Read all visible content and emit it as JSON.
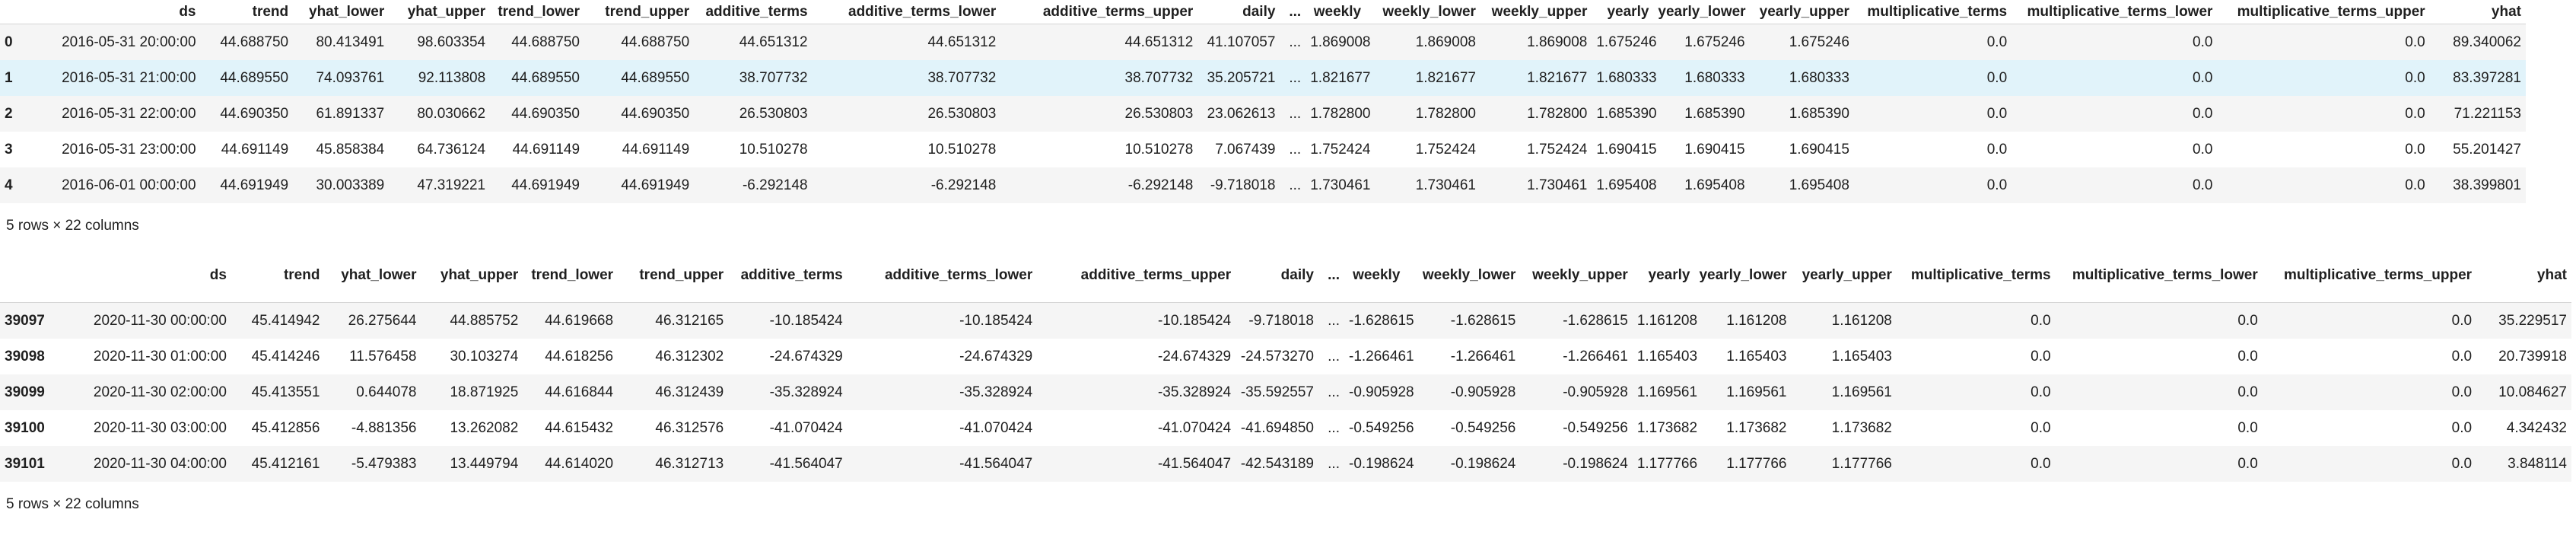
{
  "table1": {
    "columns": [
      "ds",
      "trend",
      "yhat_lower",
      "yhat_upper",
      "trend_lower",
      "trend_upper",
      "additive_terms",
      "additive_terms_lower",
      "additive_terms_upper",
      "daily",
      "...",
      "weekly",
      "weekly_lower",
      "weekly_upper",
      "yearly",
      "yearly_lower",
      "yearly_upper",
      "multiplicative_terms",
      "multiplicative_terms_lower",
      "multiplicative_terms_upper",
      "yhat"
    ],
    "rows": [
      {
        "idx": "0",
        "cells": [
          "2016-05-31 20:00:00",
          "44.688750",
          "80.413491",
          "98.603354",
          "44.688750",
          "44.688750",
          "44.651312",
          "44.651312",
          "44.651312",
          "41.107057",
          "...",
          "1.869008",
          "1.869008",
          "1.869008",
          "1.675246",
          "1.675246",
          "1.675246",
          "0.0",
          "0.0",
          "0.0",
          "89.340062"
        ]
      },
      {
        "idx": "1",
        "cells": [
          "2016-05-31 21:00:00",
          "44.689550",
          "74.093761",
          "92.113808",
          "44.689550",
          "44.689550",
          "38.707732",
          "38.707732",
          "38.707732",
          "35.205721",
          "...",
          "1.821677",
          "1.821677",
          "1.821677",
          "1.680333",
          "1.680333",
          "1.680333",
          "0.0",
          "0.0",
          "0.0",
          "83.397281"
        ]
      },
      {
        "idx": "2",
        "cells": [
          "2016-05-31 22:00:00",
          "44.690350",
          "61.891337",
          "80.030662",
          "44.690350",
          "44.690350",
          "26.530803",
          "26.530803",
          "26.530803",
          "23.062613",
          "...",
          "1.782800",
          "1.782800",
          "1.782800",
          "1.685390",
          "1.685390",
          "1.685390",
          "0.0",
          "0.0",
          "0.0",
          "71.221153"
        ]
      },
      {
        "idx": "3",
        "cells": [
          "2016-05-31 23:00:00",
          "44.691149",
          "45.858384",
          "64.736124",
          "44.691149",
          "44.691149",
          "10.510278",
          "10.510278",
          "10.510278",
          "7.067439",
          "...",
          "1.752424",
          "1.752424",
          "1.752424",
          "1.690415",
          "1.690415",
          "1.690415",
          "0.0",
          "0.0",
          "0.0",
          "55.201427"
        ]
      },
      {
        "idx": "4",
        "cells": [
          "2016-06-01 00:00:00",
          "44.691949",
          "30.003389",
          "47.319221",
          "44.691949",
          "44.691949",
          "-6.292148",
          "-6.292148",
          "-6.292148",
          "-9.718018",
          "...",
          "1.730461",
          "1.730461",
          "1.730461",
          "1.695408",
          "1.695408",
          "1.695408",
          "0.0",
          "0.0",
          "0.0",
          "38.399801"
        ]
      }
    ],
    "caption": "5 rows × 22 columns"
  },
  "table2": {
    "columns": [
      "ds",
      "trend",
      "yhat_lower",
      "yhat_upper",
      "trend_lower",
      "trend_upper",
      "additive_terms",
      "additive_terms_lower",
      "additive_terms_upper",
      "daily",
      "...",
      "weekly",
      "weekly_lower",
      "weekly_upper",
      "yearly",
      "yearly_lower",
      "yearly_upper",
      "multiplicative_terms",
      "multiplicative_terms_lower",
      "multiplicative_terms_upper",
      "yhat"
    ],
    "rows": [
      {
        "idx": "39097",
        "cells": [
          "2020-11-30 00:00:00",
          "45.414942",
          "26.275644",
          "44.885752",
          "44.619668",
          "46.312165",
          "-10.185424",
          "-10.185424",
          "-10.185424",
          "-9.718018",
          "...",
          "-1.628615",
          "-1.628615",
          "-1.628615",
          "1.161208",
          "1.161208",
          "1.161208",
          "0.0",
          "0.0",
          "0.0",
          "35.229517"
        ]
      },
      {
        "idx": "39098",
        "cells": [
          "2020-11-30 01:00:00",
          "45.414246",
          "11.576458",
          "30.103274",
          "44.618256",
          "46.312302",
          "-24.674329",
          "-24.674329",
          "-24.674329",
          "-24.573270",
          "...",
          "-1.266461",
          "-1.266461",
          "-1.266461",
          "1.165403",
          "1.165403",
          "1.165403",
          "0.0",
          "0.0",
          "0.0",
          "20.739918"
        ]
      },
      {
        "idx": "39099",
        "cells": [
          "2020-11-30 02:00:00",
          "45.413551",
          "0.644078",
          "18.871925",
          "44.616844",
          "46.312439",
          "-35.328924",
          "-35.328924",
          "-35.328924",
          "-35.592557",
          "...",
          "-0.905928",
          "-0.905928",
          "-0.905928",
          "1.169561",
          "1.169561",
          "1.169561",
          "0.0",
          "0.0",
          "0.0",
          "10.084627"
        ]
      },
      {
        "idx": "39100",
        "cells": [
          "2020-11-30 03:00:00",
          "45.412856",
          "-4.881356",
          "13.262082",
          "44.615432",
          "46.312576",
          "-41.070424",
          "-41.070424",
          "-41.070424",
          "-41.694850",
          "...",
          "-0.549256",
          "-0.549256",
          "-0.549256",
          "1.173682",
          "1.173682",
          "1.173682",
          "0.0",
          "0.0",
          "0.0",
          "4.342432"
        ]
      },
      {
        "idx": "39101",
        "cells": [
          "2020-11-30 04:00:00",
          "45.412161",
          "-5.479383",
          "13.449794",
          "44.614020",
          "46.312713",
          "-41.564047",
          "-41.564047",
          "-41.564047",
          "-42.543189",
          "...",
          "-0.198624",
          "-0.198624",
          "-0.198624",
          "1.177766",
          "1.177766",
          "1.177766",
          "0.0",
          "0.0",
          "0.0",
          "3.848114"
        ]
      }
    ],
    "caption": "5 rows × 22 columns"
  }
}
